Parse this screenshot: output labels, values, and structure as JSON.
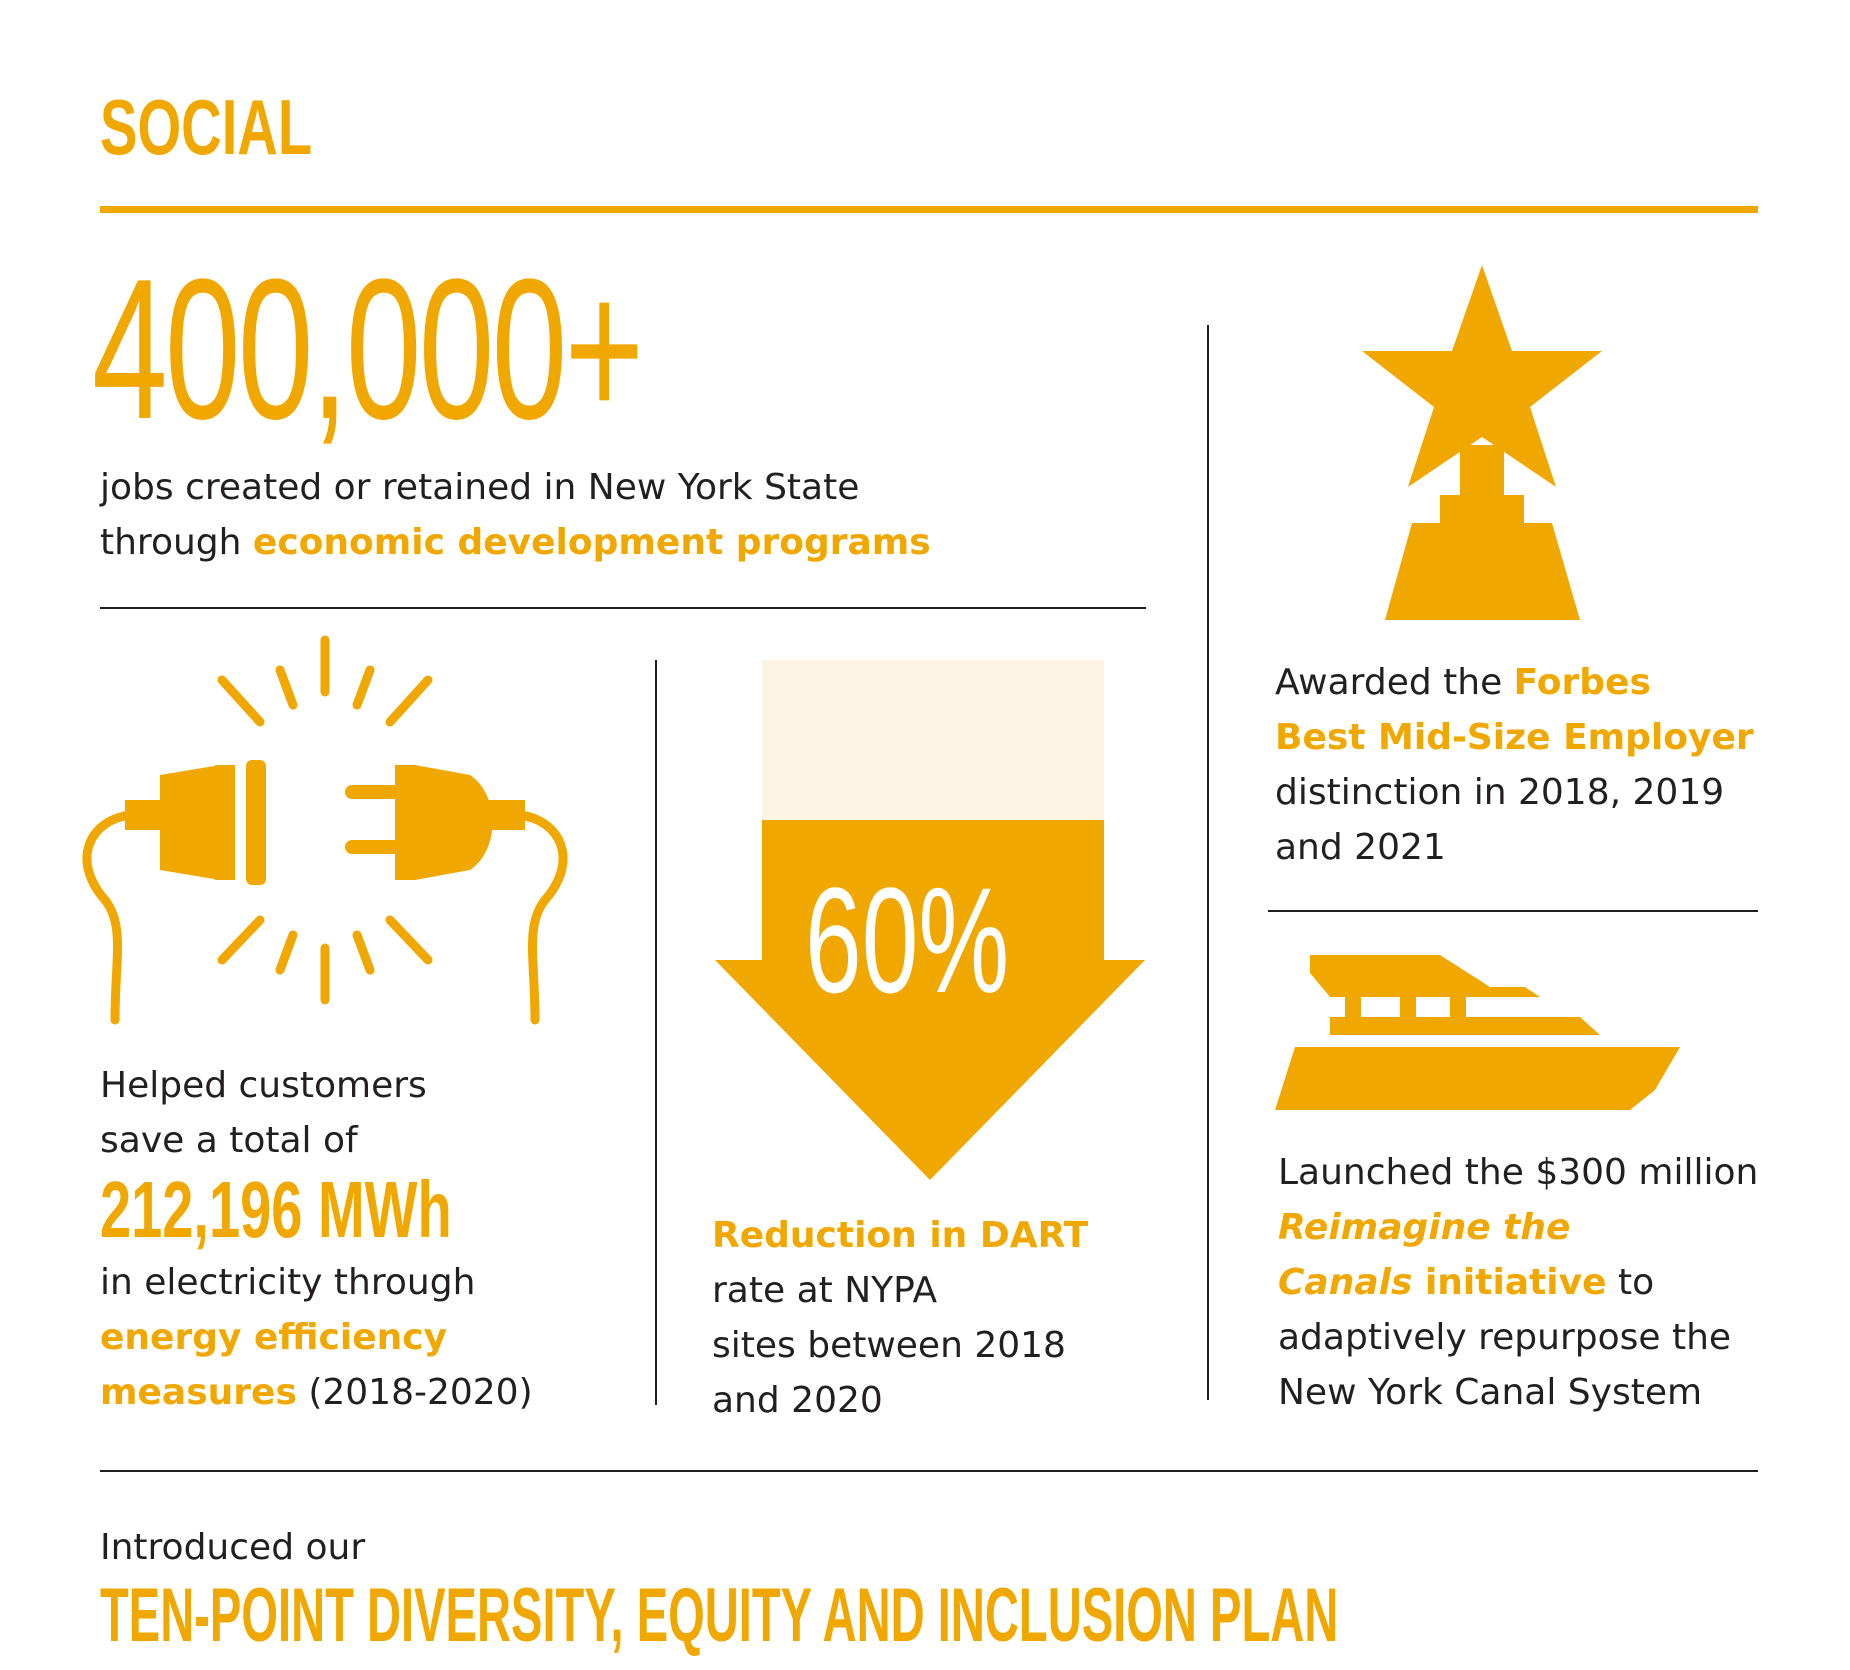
{
  "colors": {
    "accent": "#f0a800",
    "text": "#231f20",
    "arrow_top": "#fdf4e6"
  },
  "section_title": "SOCIAL",
  "jobs": {
    "number": "400,000+",
    "line1": "jobs created or retained in New York State",
    "line2_prefix": "through ",
    "line2_highlight": "economic development programs"
  },
  "energy": {
    "icon": "unplugged-plug-icon",
    "line1": "Helped customers",
    "line2": "save a total of",
    "value": "212,196 MWh",
    "line3": "in electricity through",
    "highlight1": "energy efficiency",
    "highlight2": "measures",
    "suffix": " (2018-2020)"
  },
  "dart": {
    "icon": "down-arrow-icon",
    "percent": "60%",
    "fill_fraction": 0.6,
    "heading": "Reduction in DART",
    "line1": "rate at NYPA",
    "line2": "sites between 2018",
    "line3": "and 2020"
  },
  "forbes": {
    "icon": "trophy-star-icon",
    "prefix": "Awarded the ",
    "highlight1": "Forbes",
    "highlight2": "Best Mid-Size Employer",
    "line3": "distinction in 2018, 2019",
    "line4": "and 2021"
  },
  "canals": {
    "icon": "yacht-icon",
    "line1": "Launched the $300 million",
    "italic1": "Reimagine the",
    "italic2": "Canals",
    "highlight": " initiative",
    "suffix": " to",
    "line4": "adaptively repurpose the",
    "line5": "New York Canal System"
  },
  "dei": {
    "intro": "Introduced our",
    "title": "TEN-POINT DIVERSITY, EQUITY AND INCLUSION PLAN"
  }
}
